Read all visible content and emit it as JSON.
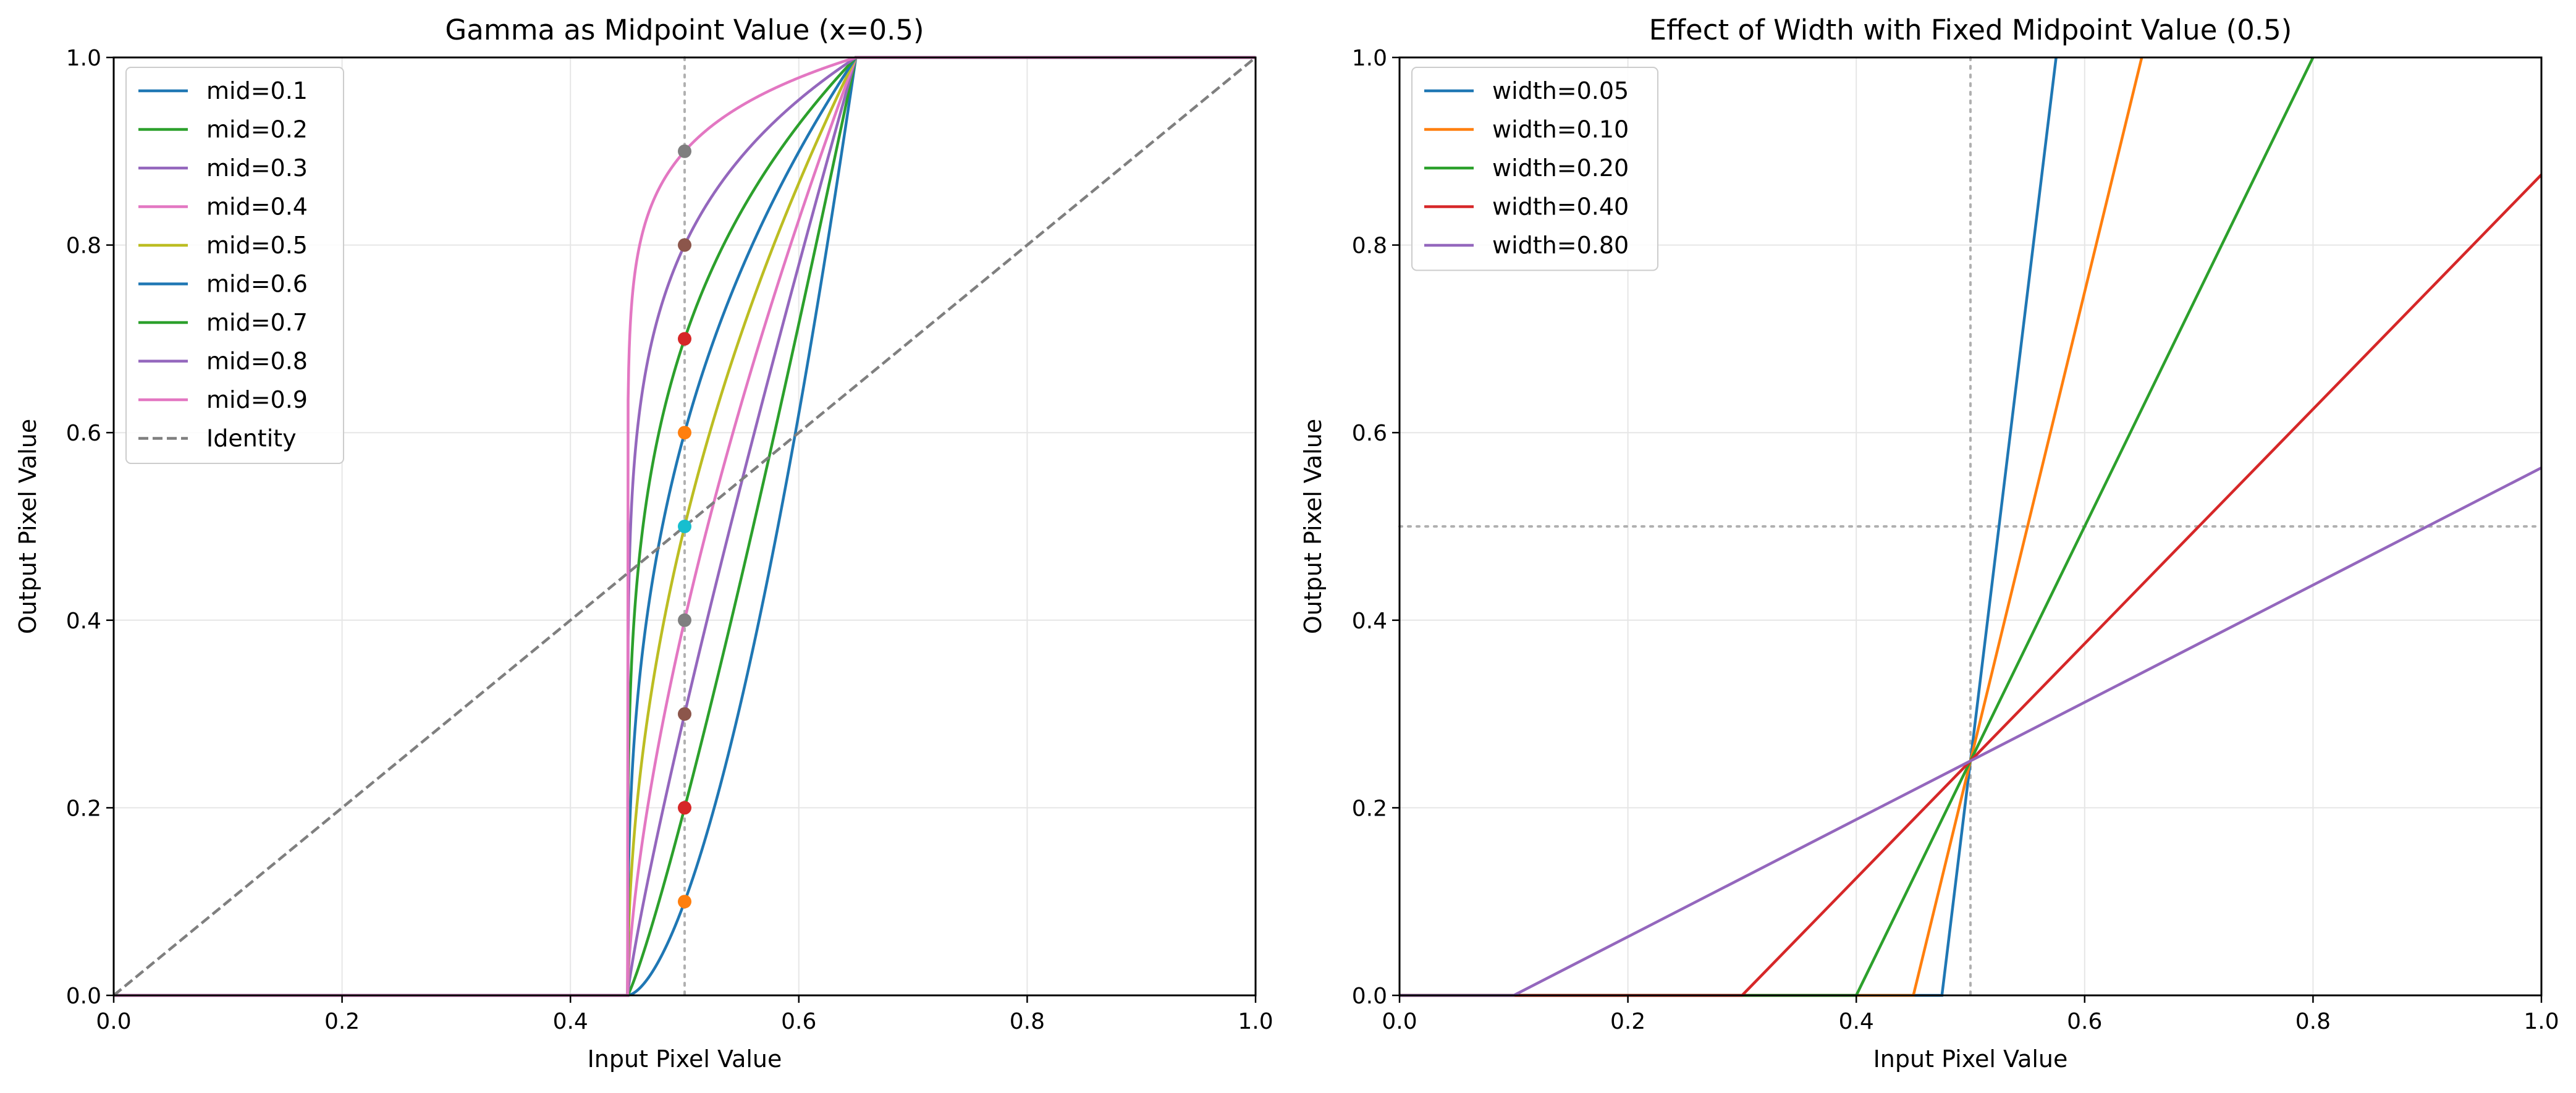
{
  "chart_data": [
    {
      "type": "line",
      "title": "Gamma as Midpoint Value (x=0.5)",
      "xlabel": "Input Pixel Value",
      "ylabel": "Output Pixel Value",
      "xlim": [
        0,
        1
      ],
      "ylim": [
        0,
        1
      ],
      "xticks": [
        "0.0",
        "0.2",
        "0.4",
        "0.6",
        "0.8",
        "1.0"
      ],
      "yticks": [
        "0.0",
        "0.2",
        "0.4",
        "0.6",
        "0.8",
        "1.0"
      ],
      "grid": true,
      "legend_position": "upper-left",
      "x_range_min": 0.45,
      "x_range_max": 0.65,
      "vline_x": 0.5,
      "series": [
        {
          "name": "mid=0.1",
          "midpoint": 0.1,
          "color": "#1f77b4",
          "style": "solid"
        },
        {
          "name": "mid=0.2",
          "midpoint": 0.2,
          "color": "#2ca02c",
          "style": "solid"
        },
        {
          "name": "mid=0.3",
          "midpoint": 0.3,
          "color": "#9467bd",
          "style": "solid"
        },
        {
          "name": "mid=0.4",
          "midpoint": 0.4,
          "color": "#e377c2",
          "style": "solid"
        },
        {
          "name": "mid=0.5",
          "midpoint": 0.5,
          "color": "#bcbd22",
          "style": "solid"
        },
        {
          "name": "mid=0.6",
          "midpoint": 0.6,
          "color": "#1f77b4",
          "style": "solid"
        },
        {
          "name": "mid=0.7",
          "midpoint": 0.7,
          "color": "#2ca02c",
          "style": "solid"
        },
        {
          "name": "mid=0.8",
          "midpoint": 0.8,
          "color": "#9467bd",
          "style": "solid"
        },
        {
          "name": "mid=0.9",
          "midpoint": 0.9,
          "color": "#e377c2",
          "style": "solid"
        },
        {
          "name": "Identity",
          "identity": true,
          "color": "#7f7f7f",
          "style": "dashed"
        }
      ],
      "markers": [
        {
          "x": 0.5,
          "y": 0.1,
          "color": "#ff7f0e"
        },
        {
          "x": 0.5,
          "y": 0.2,
          "color": "#d62728"
        },
        {
          "x": 0.5,
          "y": 0.3,
          "color": "#8c564b"
        },
        {
          "x": 0.5,
          "y": 0.4,
          "color": "#7f7f7f"
        },
        {
          "x": 0.5,
          "y": 0.5,
          "color": "#17becf"
        },
        {
          "x": 0.5,
          "y": 0.6,
          "color": "#ff7f0e"
        },
        {
          "x": 0.5,
          "y": 0.7,
          "color": "#d62728"
        },
        {
          "x": 0.5,
          "y": 0.8,
          "color": "#8c564b"
        },
        {
          "x": 0.5,
          "y": 0.9,
          "color": "#7f7f7f"
        }
      ]
    },
    {
      "type": "line",
      "title": "Effect of Width with Fixed Midpoint Value (0.5)",
      "xlabel": "Input Pixel Value",
      "ylabel": "Output Pixel Value",
      "xlim": [
        0,
        1
      ],
      "ylim": [
        0,
        1
      ],
      "xticks": [
        "0.0",
        "0.2",
        "0.4",
        "0.6",
        "0.8",
        "1.0"
      ],
      "yticks": [
        "0.0",
        "0.2",
        "0.4",
        "0.6",
        "0.8",
        "1.0"
      ],
      "grid": true,
      "legend_position": "upper-left",
      "vline_x": 0.5,
      "hline_y": 0.5,
      "center_x": 0.5,
      "center_y": 0.25,
      "series": [
        {
          "name": "width=0.05",
          "width": 0.05,
          "color": "#1f77b4"
        },
        {
          "name": "width=0.10",
          "width": 0.1,
          "color": "#ff7f0e"
        },
        {
          "name": "width=0.20",
          "width": 0.2,
          "color": "#2ca02c"
        },
        {
          "name": "width=0.40",
          "width": 0.4,
          "color": "#d62728"
        },
        {
          "name": "width=0.80",
          "width": 0.8,
          "color": "#9467bd"
        }
      ]
    }
  ]
}
